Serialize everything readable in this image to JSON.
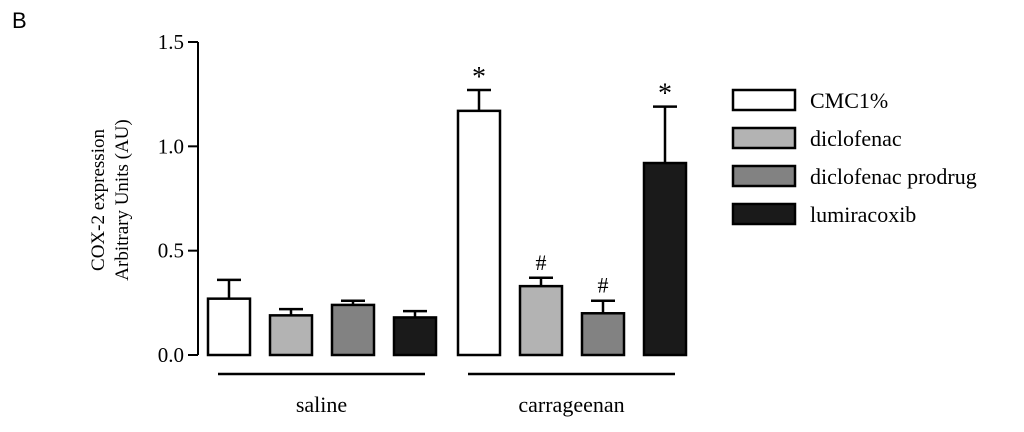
{
  "panel_label": "B",
  "chart_data": {
    "type": "bar",
    "ylabel_line1": "COX-2 expression",
    "ylabel_line2": "Arbitrary  Units (AU)",
    "ylim": [
      0,
      1.5
    ],
    "yticks": [
      "0.0",
      "0.5",
      "1.0",
      "1.5"
    ],
    "groups": [
      "saline",
      "carrageenan"
    ],
    "series": [
      {
        "name": "CMC1%",
        "color": "#ffffff",
        "values": [
          0.27,
          1.17
        ],
        "errors": [
          0.09,
          0.1
        ],
        "markers": [
          "",
          "*"
        ]
      },
      {
        "name": "diclofenac",
        "color": "#b3b3b3",
        "values": [
          0.19,
          0.33
        ],
        "errors": [
          0.03,
          0.04
        ],
        "markers": [
          "",
          "#"
        ]
      },
      {
        "name": "diclofenac prodrug",
        "color": "#828282",
        "values": [
          0.24,
          0.2
        ],
        "errors": [
          0.02,
          0.06
        ],
        "markers": [
          "",
          "#"
        ]
      },
      {
        "name": "lumiracoxib",
        "color": "#1a1a1a",
        "values": [
          0.18,
          0.92
        ],
        "errors": [
          0.03,
          0.27
        ],
        "markers": [
          "",
          "*"
        ]
      }
    ],
    "legend_position": "right",
    "grid": false
  }
}
